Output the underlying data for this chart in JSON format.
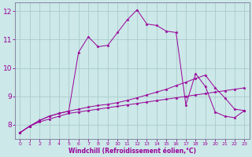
{
  "xlabel": "Windchill (Refroidissement éolien,°C)",
  "background_color": "#cce8e8",
  "grid_color": "#aacccc",
  "line_color": "#990099",
  "xlim": [
    -0.5,
    23.5
  ],
  "ylim": [
    7.5,
    12.3
  ],
  "xticks": [
    0,
    1,
    2,
    3,
    4,
    5,
    6,
    7,
    8,
    9,
    10,
    11,
    12,
    13,
    14,
    15,
    16,
    17,
    18,
    19,
    20,
    21,
    22,
    23
  ],
  "yticks": [
    8,
    9,
    10,
    11,
    12
  ],
  "line1_x": [
    0,
    1,
    2,
    3,
    4,
    5,
    6,
    7,
    8,
    9,
    10,
    11,
    12,
    13,
    14,
    15,
    16,
    17,
    18,
    19,
    20,
    21,
    22,
    23
  ],
  "line1_y": [
    7.72,
    7.95,
    8.1,
    8.2,
    8.3,
    8.4,
    8.45,
    8.5,
    8.55,
    8.6,
    8.65,
    8.7,
    8.75,
    8.8,
    8.85,
    8.9,
    8.95,
    9.0,
    9.05,
    9.1,
    9.15,
    9.2,
    9.25,
    9.3
  ],
  "line2_x": [
    0,
    1,
    2,
    3,
    4,
    5,
    6,
    7,
    8,
    9,
    10,
    11,
    12,
    13,
    14,
    15,
    16,
    17,
    18,
    19,
    20,
    21,
    22,
    23
  ],
  "line2_y": [
    7.72,
    7.95,
    8.15,
    8.3,
    8.4,
    8.48,
    8.55,
    8.62,
    8.68,
    8.72,
    8.78,
    8.86,
    8.95,
    9.05,
    9.15,
    9.25,
    9.38,
    9.5,
    9.63,
    9.75,
    9.3,
    8.95,
    8.55,
    8.5
  ],
  "line3_x": [
    0,
    1,
    2,
    3,
    4,
    5,
    6,
    7,
    8,
    9,
    10,
    11,
    12,
    13,
    14,
    15,
    16,
    17,
    18,
    19,
    20,
    21,
    22,
    23
  ],
  "line3_y": [
    7.72,
    7.95,
    8.15,
    8.3,
    8.4,
    8.48,
    10.55,
    11.1,
    10.75,
    10.8,
    11.25,
    11.7,
    12.05,
    11.55,
    11.5,
    11.3,
    11.25,
    8.7,
    9.8,
    9.35,
    8.45,
    8.3,
    8.25,
    8.5
  ]
}
